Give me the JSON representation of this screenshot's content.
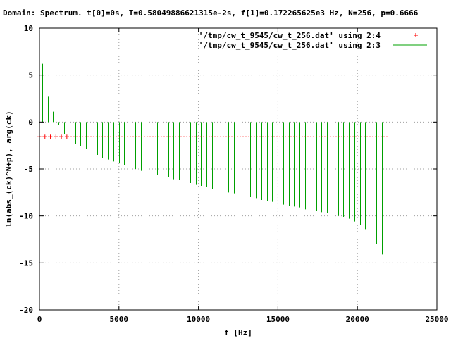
{
  "chart_data": {
    "type": "line",
    "title": "Domain: Spectrum.   t[0]=0s, T=0.58049886621315e-2s, f[1]=0.172265625e3 Hz, N=256, p=0.6666",
    "xlabel": "f [Hz]",
    "ylabel": "ln(abs_(ck)^N+p), arg(ck)",
    "xlim": [
      0,
      25000
    ],
    "ylim": [
      -20,
      10
    ],
    "xticks": [
      0,
      5000,
      10000,
      15000,
      20000,
      25000
    ],
    "yticks": [
      -20,
      -15,
      -10,
      -5,
      0,
      5,
      10
    ],
    "xtick_labels": [
      "0",
      "5000",
      "10000",
      "15000",
      "20000",
      "25000"
    ],
    "ytick_labels": [
      "-20",
      "-15",
      "-10",
      "-5",
      "0",
      "5",
      "10"
    ],
    "grid": true,
    "legend_position": "top-right",
    "series": [
      {
        "name": "'/tmp/cw_t_9545/cw_t_256.dat' using 2:4",
        "style": "points",
        "color": "#ff0000",
        "x": [
          0,
          345,
          689,
          1034,
          1378,
          1723
        ],
        "y": [
          -1.57,
          -1.57,
          -1.57,
          -1.57,
          -1.57,
          -1.57
        ]
      },
      {
        "name": "'/tmp/cw_t_9545/cw_t_256.dat' using 2:3",
        "style": "impulses",
        "color": "#00a000",
        "x": [
          172,
          517,
          861,
          1206,
          1550,
          1895,
          2239,
          2584,
          2928,
          3273,
          3618,
          3962,
          4307,
          4651,
          4996,
          5340,
          5685,
          6029,
          6374,
          6718,
          7063,
          7408,
          7752,
          8097,
          8441,
          8786,
          9130,
          9475,
          9819,
          10164,
          10508,
          10853,
          11198,
          11542,
          11887,
          12231,
          12576,
          12920,
          13265,
          13609,
          13954,
          14298,
          14643,
          14988,
          15332,
          15677,
          16021,
          16366,
          16710,
          17055,
          17399,
          17744,
          18088,
          18433,
          18778,
          19122,
          19467,
          19811,
          20156,
          20500,
          20845,
          21189,
          21534,
          21878
        ],
        "y": [
          6.2,
          2.7,
          1.1,
          -0.3,
          -1.3,
          -1.9,
          -2.3,
          -2.6,
          -2.9,
          -3.2,
          -3.5,
          -3.8,
          -4.0,
          -4.2,
          -4.4,
          -4.6,
          -4.8,
          -5.0,
          -5.2,
          -5.3,
          -5.5,
          -5.6,
          -5.8,
          -5.9,
          -6.1,
          -6.2,
          -6.4,
          -6.5,
          -6.7,
          -6.8,
          -6.9,
          -7.1,
          -7.2,
          -7.3,
          -7.5,
          -7.6,
          -7.8,
          -7.9,
          -8.0,
          -8.1,
          -8.3,
          -8.4,
          -8.5,
          -8.6,
          -8.8,
          -8.9,
          -9.0,
          -9.1,
          -9.3,
          -9.4,
          -9.5,
          -9.6,
          -9.7,
          -9.8,
          -10.0,
          -10.1,
          -10.3,
          -10.6,
          -11.0,
          -11.4,
          -12.1,
          -13.0,
          -14.1,
          -16.2
        ]
      }
    ]
  }
}
